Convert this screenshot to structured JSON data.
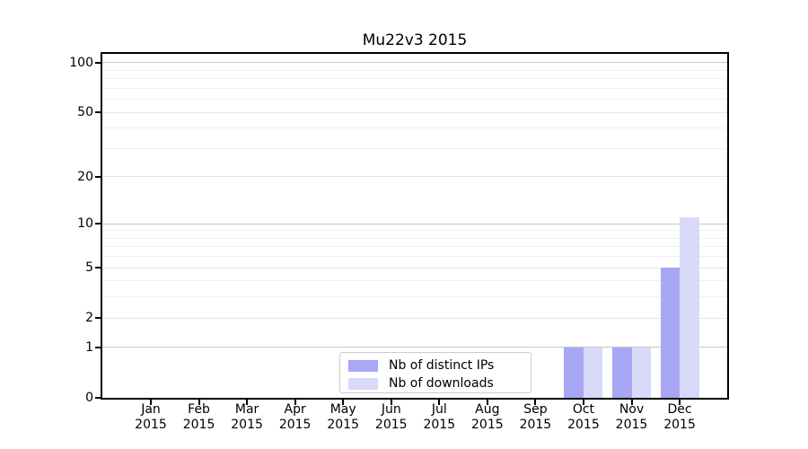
{
  "figure": {
    "background": "#ffffff"
  },
  "chart_data": {
    "type": "bar",
    "title": "Mu22v3 2015",
    "categories": [
      "Jan",
      "Feb",
      "Mar",
      "Apr",
      "May",
      "Jun",
      "Jul",
      "Aug",
      "Sep",
      "Oct",
      "Nov",
      "Dec"
    ],
    "category_year": "2015",
    "series": [
      {
        "name": "Nb of distinct IPs",
        "color": "#a7a7f6",
        "values": [
          0,
          0,
          0,
          0,
          0,
          0,
          0,
          0,
          0,
          1,
          1,
          5
        ]
      },
      {
        "name": "Nb of downloads",
        "color": "#d9d9f9",
        "values": [
          0,
          0,
          0,
          0,
          0,
          0,
          0,
          0,
          0,
          1,
          1,
          11
        ]
      }
    ],
    "yscale": "log1p",
    "ylim": [
      0,
      113
    ],
    "yticks": [
      0,
      1,
      2,
      5,
      10,
      20,
      50,
      100
    ],
    "yticks_minor": [
      3,
      4,
      6,
      7,
      8,
      9,
      30,
      40,
      60,
      70,
      80,
      90
    ],
    "grid": "horizontal",
    "grid_emphasis_ticks": [
      1,
      10,
      100
    ],
    "legend_position": "lower center",
    "colors": {
      "grid_emphasis": "#c6c6c6",
      "grid_major": "#e7e7e7",
      "grid_minor": "#f0f0f0",
      "spine": "#000000",
      "text": "#000000",
      "legend_border": "#cccccc"
    }
  }
}
